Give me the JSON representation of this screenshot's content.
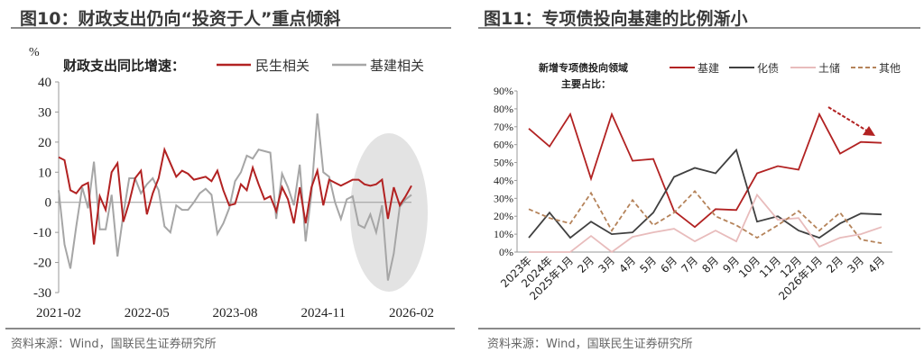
{
  "chart_data": [
    {
      "type": "line",
      "title": "图10：财政支出仍向“投资于人”重点倾斜",
      "unit_label": "%",
      "legend_title": "财政支出同比增速：",
      "legend_placement": "top",
      "x_start": "2021-02",
      "x_ticks": [
        "2021-02",
        "2022-05",
        "2023-08",
        "2024-11",
        "2026-02"
      ],
      "ylim": [
        -30,
        40
      ],
      "y_ticks": [
        40,
        30,
        20,
        10,
        0,
        -10,
        -20,
        -30
      ],
      "highlight": "gray ellipse over 2025–2026 period",
      "series": [
        {
          "name": "民生相关",
          "color": "#b22222",
          "values": [
            15,
            14,
            4,
            3,
            5.5,
            6.5,
            -14,
            2,
            -2.5,
            10,
            13,
            -6.5,
            0,
            8,
            10.5,
            -4,
            3,
            8,
            17.5,
            13,
            8.5,
            10.5,
            9.5,
            7.5,
            8,
            8.5,
            7,
            10.5,
            4,
            -1,
            -0.5,
            6,
            4,
            11.5,
            6,
            1,
            2,
            -3,
            5,
            1,
            -7,
            5,
            -7,
            5,
            10.5,
            -1,
            7.5,
            6.5,
            5.5,
            6.5,
            7.5,
            7.5,
            6,
            5.5,
            6,
            7.5,
            -5.5,
            5,
            -1,
            2,
            5.5
          ]
        },
        {
          "name": "基建相关",
          "color": "#a6a6a6",
          "values": [
            4,
            -14,
            -22,
            -8,
            5,
            -2,
            13.5,
            -9,
            -9,
            2.5,
            -18,
            -4,
            8,
            8,
            3,
            6,
            8,
            4,
            -8,
            -10,
            -1,
            -2.5,
            -2.5,
            0,
            3,
            4.5,
            2.5,
            -10.5,
            -7,
            -2,
            7,
            10,
            15.5,
            14.5,
            17.5,
            17,
            16.5,
            -5.5,
            9.5,
            5,
            -1,
            12.5,
            -13,
            3,
            29.5,
            10,
            8.5,
            0,
            -5.5,
            1,
            2,
            -7.5,
            -8.5,
            -4,
            -10,
            -1,
            -26,
            -17,
            -1.5,
            1,
            2.5
          ]
        }
      ]
    },
    {
      "type": "line",
      "title": "图11：专项债投向基建的比例渐小",
      "legend_title": [
        "新增专项债投向领域",
        "主要占比："
      ],
      "legend_placement": "top",
      "categories": [
        "2023年",
        "2024年",
        "2025年1月",
        "2月",
        "3月",
        "4月",
        "5月",
        "6月",
        "7月",
        "8月",
        "9月",
        "10月",
        "11月",
        "12月",
        "2026年1月",
        "2月",
        "3月",
        "4月"
      ],
      "ylim": [
        0,
        90
      ],
      "y_ticks": [
        "90%",
        "80%",
        "70%",
        "60%",
        "50%",
        "40%",
        "30%",
        "20%",
        "10%",
        "0%"
      ],
      "annotation": "dashed red arrow pointing down-right over 2026 基建 values",
      "series": [
        {
          "name": "基建",
          "color": "#b22222",
          "dash": false,
          "values": [
            69,
            59,
            77,
            41,
            77,
            51,
            52,
            23,
            14,
            24,
            23.5,
            44,
            48,
            46,
            77,
            55,
            61.5,
            61
          ]
        },
        {
          "name": "化债",
          "color": "#404040",
          "dash": false,
          "values": [
            8,
            22,
            8,
            17,
            10,
            11,
            22,
            42,
            47,
            44,
            57,
            17,
            20,
            12,
            8,
            16,
            21.5,
            21
          ]
        },
        {
          "name": "土储",
          "color": "#e8bcbc",
          "dash": false,
          "values": [
            0,
            0,
            0,
            9,
            0,
            8.5,
            11,
            13,
            6,
            12,
            6,
            32,
            18,
            19,
            3,
            8,
            10,
            14
          ]
        },
        {
          "name": "其他",
          "color": "#b5835a",
          "dash": true,
          "values": [
            24,
            19,
            16,
            33,
            12,
            29,
            15,
            22,
            34,
            20,
            15,
            8,
            15,
            23,
            12,
            22,
            7,
            5
          ]
        }
      ]
    }
  ],
  "footer": {
    "left_source": "资料来源：Wind，国联民生证券研究所",
    "right_source": "资料来源：Wind，国联民生证券研究所"
  }
}
